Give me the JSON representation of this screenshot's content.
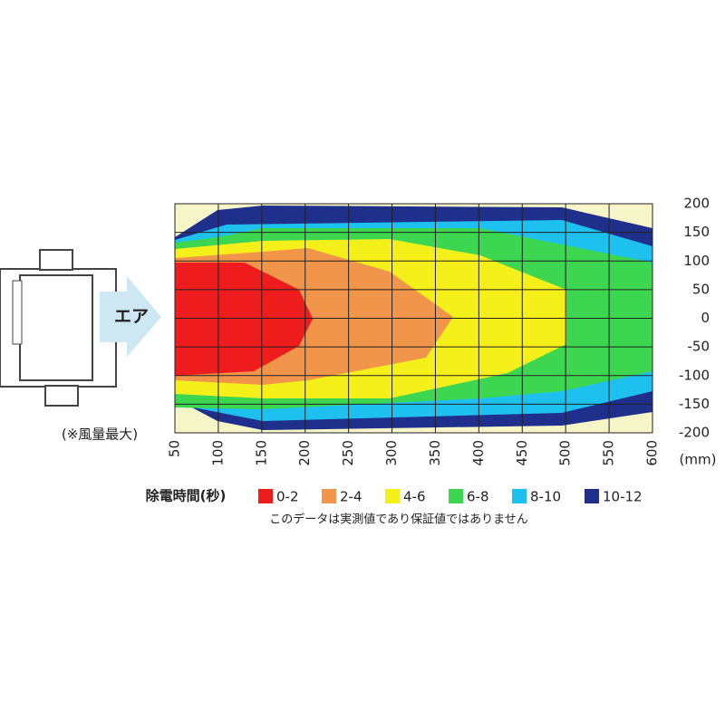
{
  "chart_data": {
    "type": "contour",
    "xlim": [
      50,
      600
    ],
    "xticks": [
      50,
      100,
      150,
      200,
      250,
      300,
      350,
      400,
      450,
      500,
      550,
      600
    ],
    "ylim": [
      -200,
      200
    ],
    "yticks": [
      200,
      150,
      100,
      50,
      0,
      -50,
      -100,
      -150,
      -200
    ],
    "x_unit": "(mm)",
    "grid": true,
    "background": "#f5f5c8",
    "legend_title": "除電時間(秒)",
    "series": [
      {
        "name": "0-2",
        "color": "#ee1c1c"
      },
      {
        "name": "2-4",
        "color": "#f0954a"
      },
      {
        "name": "4-6",
        "color": "#f5f01a"
      },
      {
        "name": "6-8",
        "color": "#3cd650"
      },
      {
        "name": "8-10",
        "color": "#1ec0f0"
      },
      {
        "name": "10-12",
        "color": "#1e2f8c"
      }
    ],
    "note": "このデータは実測値であり保証値ではありません",
    "air_label": "エア",
    "device_note": "(※風量最大)"
  }
}
